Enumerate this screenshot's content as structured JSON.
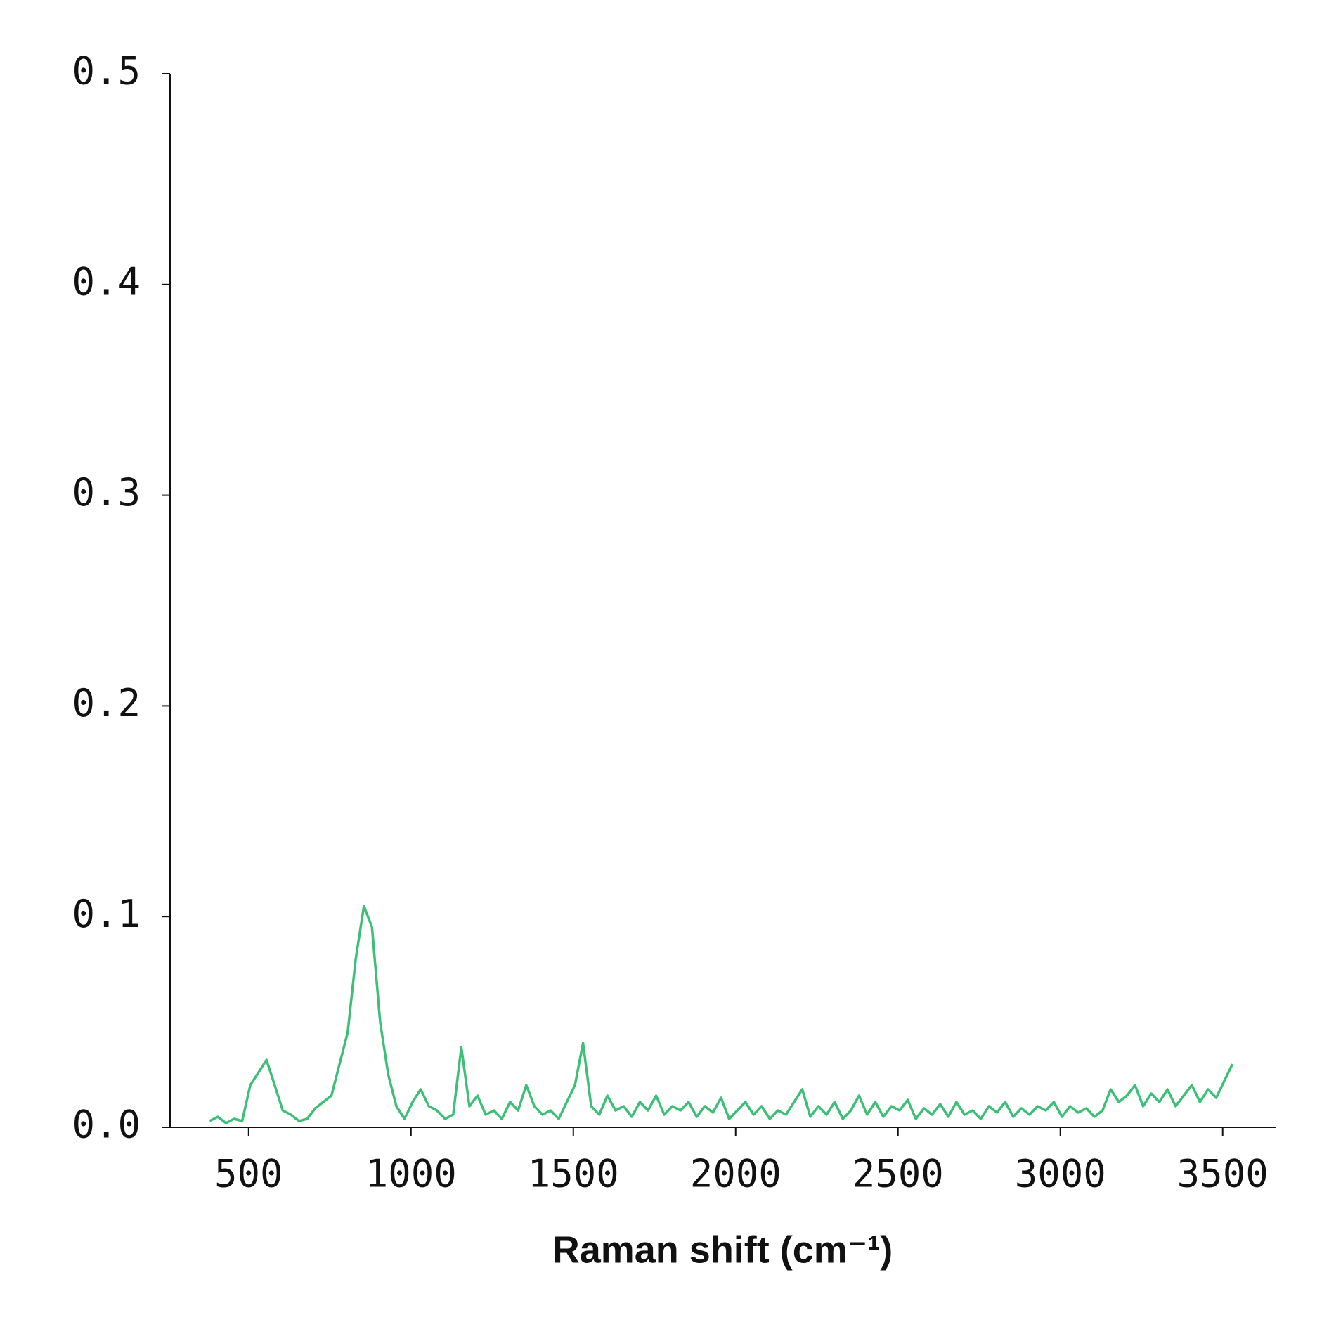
{
  "chart_data": {
    "type": "line",
    "x_label": "Raman shift (cm⁻¹)",
    "xlim": [
      258,
      3663
    ],
    "xticks": [
      500,
      1000,
      1500,
      2000,
      2500,
      3000,
      3500
    ],
    "ylim": [
      0,
      0.5
    ],
    "yticks": [
      {
        "value": 0,
        "label": "0.0"
      },
      0.1,
      0.2,
      0.3,
      0.4,
      0.5
    ],
    "grid": false,
    "series": [
      {
        "color": "#3dbf77",
        "x": [
          380,
          405,
          430,
          455,
          480,
          505,
          530,
          555,
          580,
          605,
          630,
          655,
          680,
          705,
          730,
          755,
          780,
          805,
          830,
          855,
          880,
          905,
          930,
          955,
          980,
          1005,
          1030,
          1055,
          1080,
          1105,
          1130,
          1155,
          1180,
          1205,
          1230,
          1255,
          1280,
          1305,
          1330,
          1355,
          1380,
          1405,
          1430,
          1455,
          1480,
          1505,
          1530,
          1555,
          1580,
          1605,
          1630,
          1655,
          1680,
          1705,
          1730,
          1755,
          1780,
          1805,
          1830,
          1855,
          1880,
          1905,
          1930,
          1955,
          1980,
          2005,
          2030,
          2055,
          2080,
          2105,
          2130,
          2155,
          2180,
          2205,
          2230,
          2255,
          2280,
          2305,
          2330,
          2355,
          2380,
          2405,
          2430,
          2455,
          2480,
          2505,
          2530,
          2555,
          2580,
          2605,
          2630,
          2655,
          2680,
          2705,
          2730,
          2755,
          2780,
          2805,
          2830,
          2855,
          2880,
          2905,
          2930,
          2955,
          2980,
          3005,
          3030,
          3055,
          3080,
          3105,
          3130,
          3155,
          3180,
          3205,
          3230,
          3255,
          3280,
          3305,
          3330,
          3355,
          3380,
          3405,
          3430,
          3455,
          3480,
          3505,
          3530
        ],
        "values": [
          0.003,
          0.005,
          0.002,
          0.004,
          0.003,
          0.02,
          0.026,
          0.032,
          0.02,
          0.008,
          0.006,
          0.003,
          0.004,
          0.009,
          0.012,
          0.015,
          0.03,
          0.045,
          0.08,
          0.105,
          0.095,
          0.05,
          0.025,
          0.01,
          0.004,
          0.012,
          0.018,
          0.01,
          0.008,
          0.004,
          0.006,
          0.038,
          0.01,
          0.015,
          0.006,
          0.008,
          0.004,
          0.012,
          0.008,
          0.02,
          0.01,
          0.006,
          0.008,
          0.004,
          0.012,
          0.02,
          0.04,
          0.01,
          0.006,
          0.015,
          0.008,
          0.01,
          0.005,
          0.012,
          0.008,
          0.015,
          0.006,
          0.01,
          0.008,
          0.012,
          0.005,
          0.01,
          0.007,
          0.014,
          0.004,
          0.008,
          0.012,
          0.006,
          0.01,
          0.004,
          0.008,
          0.006,
          0.012,
          0.018,
          0.005,
          0.01,
          0.006,
          0.012,
          0.004,
          0.008,
          0.015,
          0.006,
          0.012,
          0.005,
          0.01,
          0.008,
          0.013,
          0.004,
          0.009,
          0.006,
          0.011,
          0.005,
          0.012,
          0.006,
          0.008,
          0.004,
          0.01,
          0.007,
          0.012,
          0.005,
          0.009,
          0.006,
          0.01,
          0.008,
          0.012,
          0.005,
          0.01,
          0.007,
          0.009,
          0.005,
          0.008,
          0.018,
          0.012,
          0.015,
          0.02,
          0.01,
          0.016,
          0.012,
          0.018,
          0.01,
          0.015,
          0.02,
          0.012,
          0.018,
          0.014,
          0.022,
          0.03
        ]
      }
    ]
  }
}
